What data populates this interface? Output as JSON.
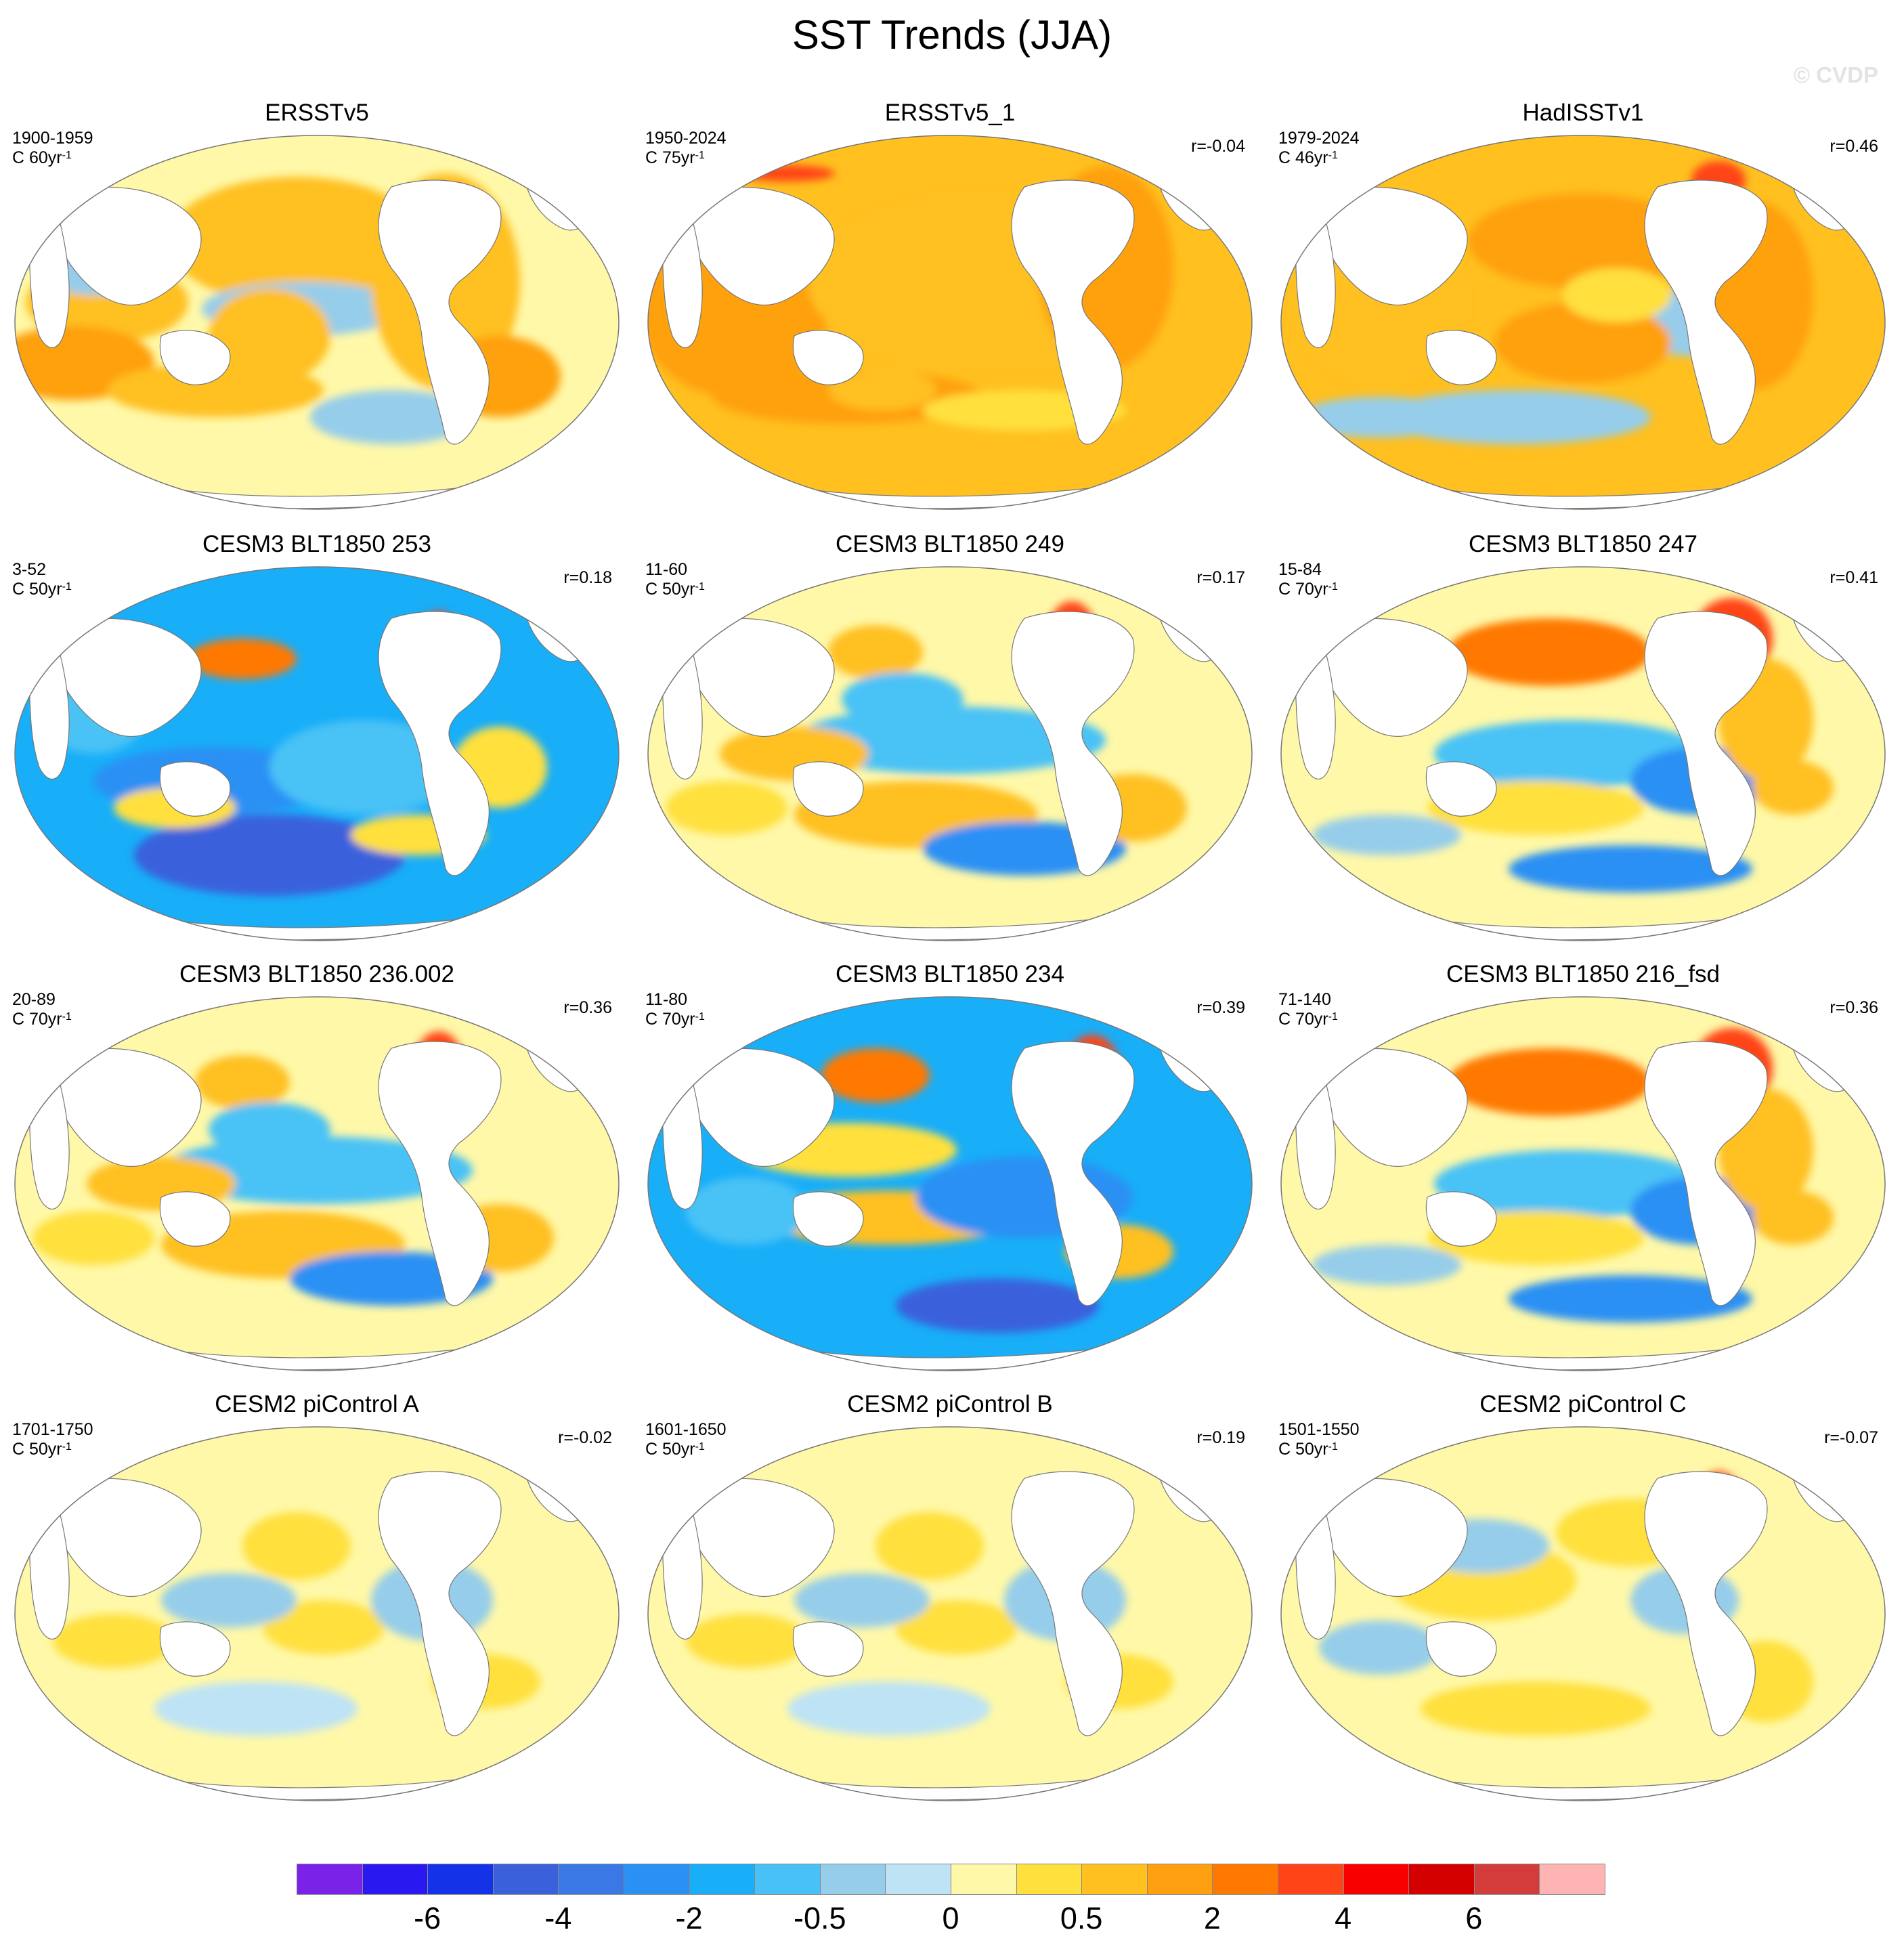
{
  "title": "SST Trends (JJA)",
  "watermark": "© CVDP",
  "units_base": "C",
  "units_suffix": "yr",
  "units_exponent": "-1",
  "panels": [
    {
      "title": "ERSSTv5",
      "period": "1900-1959",
      "per": "60",
      "r": "",
      "pattern": "obs_early"
    },
    {
      "title": "ERSSTv5_1",
      "period": "1950-2024",
      "per": "75",
      "r": "r=-0.04",
      "pattern": "obs_warm"
    },
    {
      "title": "HadISSTv1",
      "period": "1979-2024",
      "per": "46",
      "r": "r=0.46",
      "pattern": "obs_recent"
    },
    {
      "title": "CESM3 BLT1850 253",
      "period": "3-52",
      "per": "50",
      "r": "r=0.18",
      "pattern": "cold"
    },
    {
      "title": "CESM3 BLT1850 249",
      "period": "11-60",
      "per": "50",
      "r": "r=0.17",
      "pattern": "mixed"
    },
    {
      "title": "CESM3 BLT1850 247",
      "period": "15-84",
      "per": "70",
      "r": "r=0.41",
      "pattern": "mixed_warm"
    },
    {
      "title": "CESM3 BLT1850 236.002",
      "period": "20-89",
      "per": "70",
      "r": "r=0.36",
      "pattern": "mixed"
    },
    {
      "title": "CESM3 BLT1850 234",
      "period": "11-80",
      "per": "70",
      "r": "r=0.39",
      "pattern": "cold_band"
    },
    {
      "title": "CESM3 BLT1850 216_fsd",
      "period": "71-140",
      "per": "70",
      "r": "r=0.36",
      "pattern": "mixed_warm"
    },
    {
      "title": "CESM2 piControl A",
      "period": "1701-1750",
      "per": "50",
      "r": "r=-0.02",
      "pattern": "weak"
    },
    {
      "title": "CESM2 piControl B",
      "period": "1601-1650",
      "per": "50",
      "r": "r=0.19",
      "pattern": "weak"
    },
    {
      "title": "CESM2 piControl C",
      "period": "1501-1550",
      "per": "50",
      "r": "r=-0.07",
      "pattern": "weak_warm"
    }
  ],
  "chart_data": {
    "type": "heatmap",
    "title": "SST Trends (JJA)",
    "projection": "Robinson (Pacific-centered)",
    "colorbar": {
      "colors": [
        "#7a22e8",
        "#2a18f0",
        "#1432e8",
        "#3a60dc",
        "#3a78e6",
        "#2a90f4",
        "#18aef8",
        "#48c2f6",
        "#96cdea",
        "#bde3f5",
        "#fff8a8",
        "#ffe03c",
        "#ffc020",
        "#ffa010",
        "#ff7800",
        "#ff4418",
        "#f80000",
        "#d40000",
        "#d43c3c",
        "#ffb4b4"
      ],
      "tick_labels": [
        "-6",
        "-4",
        "-2",
        "-0.5",
        "0",
        "0.5",
        "2",
        "4",
        "6"
      ],
      "tick_after_box": [
        1,
        3,
        5,
        7,
        9,
        11,
        13,
        15,
        17
      ]
    }
  }
}
